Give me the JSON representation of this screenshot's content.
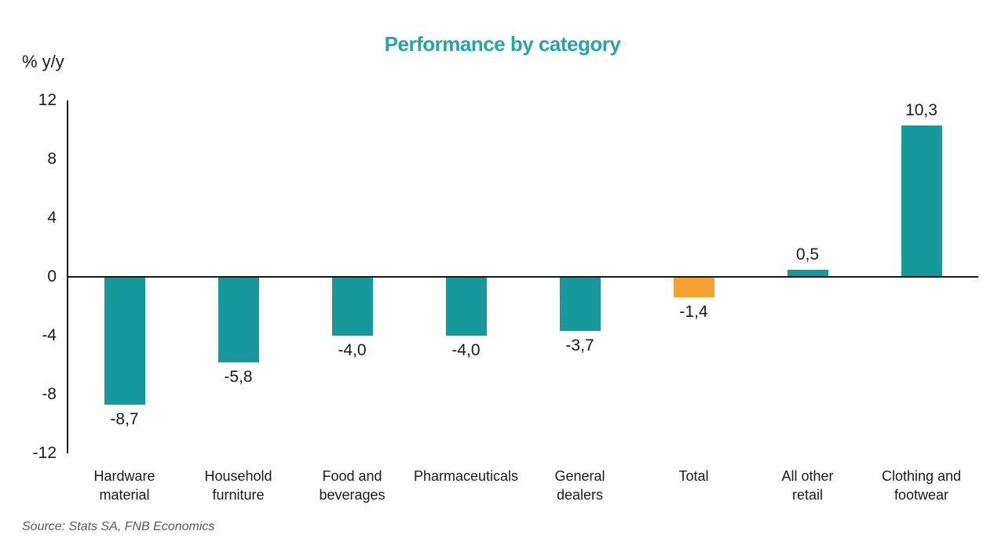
{
  "source": "Source: Stats SA, FNB Economics",
  "chart_data": {
    "type": "bar",
    "title": "Performance by category",
    "ylabel": "% y/y",
    "xlabel": "",
    "ylim": [
      -12,
      12
    ],
    "yticks": [
      12,
      8,
      4,
      0,
      -4,
      -8,
      -12
    ],
    "grid": false,
    "legend": "none",
    "decimal_separator": ",",
    "colors": {
      "bar_default": "#17999B",
      "bar_total": "#F6A233",
      "title": "#26A4AA",
      "axis": "#1A1A1A",
      "source_text": "#58595B"
    },
    "categories": [
      "Hardware material",
      "Household furniture",
      "Food and beverages",
      "Pharmaceuticals",
      "General dealers",
      "Total",
      "All other retail",
      "Clothing and footwear"
    ],
    "values": [
      -8.7,
      -5.8,
      -4.0,
      -4.0,
      -3.7,
      -1.4,
      0.5,
      10.3
    ],
    "items": [
      {
        "label": "Hardware\nmaterial",
        "value": -8.7,
        "display": "-8,7",
        "color": "bar_default"
      },
      {
        "label": "Household\nfurniture",
        "value": -5.8,
        "display": "-5,8",
        "color": "bar_default"
      },
      {
        "label": "Food and\nbeverages",
        "value": -4.0,
        "display": "-4,0",
        "color": "bar_default"
      },
      {
        "label": "Pharmaceuticals",
        "value": -4.0,
        "display": "-4,0",
        "color": "bar_default"
      },
      {
        "label": "General\ndealers",
        "value": -3.7,
        "display": "-3,7",
        "color": "bar_default"
      },
      {
        "label": "Total",
        "value": -1.4,
        "display": "-1,4",
        "color": "bar_total"
      },
      {
        "label": "All other\nretail",
        "value": 0.5,
        "display": "0,5",
        "color": "bar_default"
      },
      {
        "label": "Clothing and\nfootwear",
        "value": 10.3,
        "display": "10,3",
        "color": "bar_default"
      }
    ]
  }
}
